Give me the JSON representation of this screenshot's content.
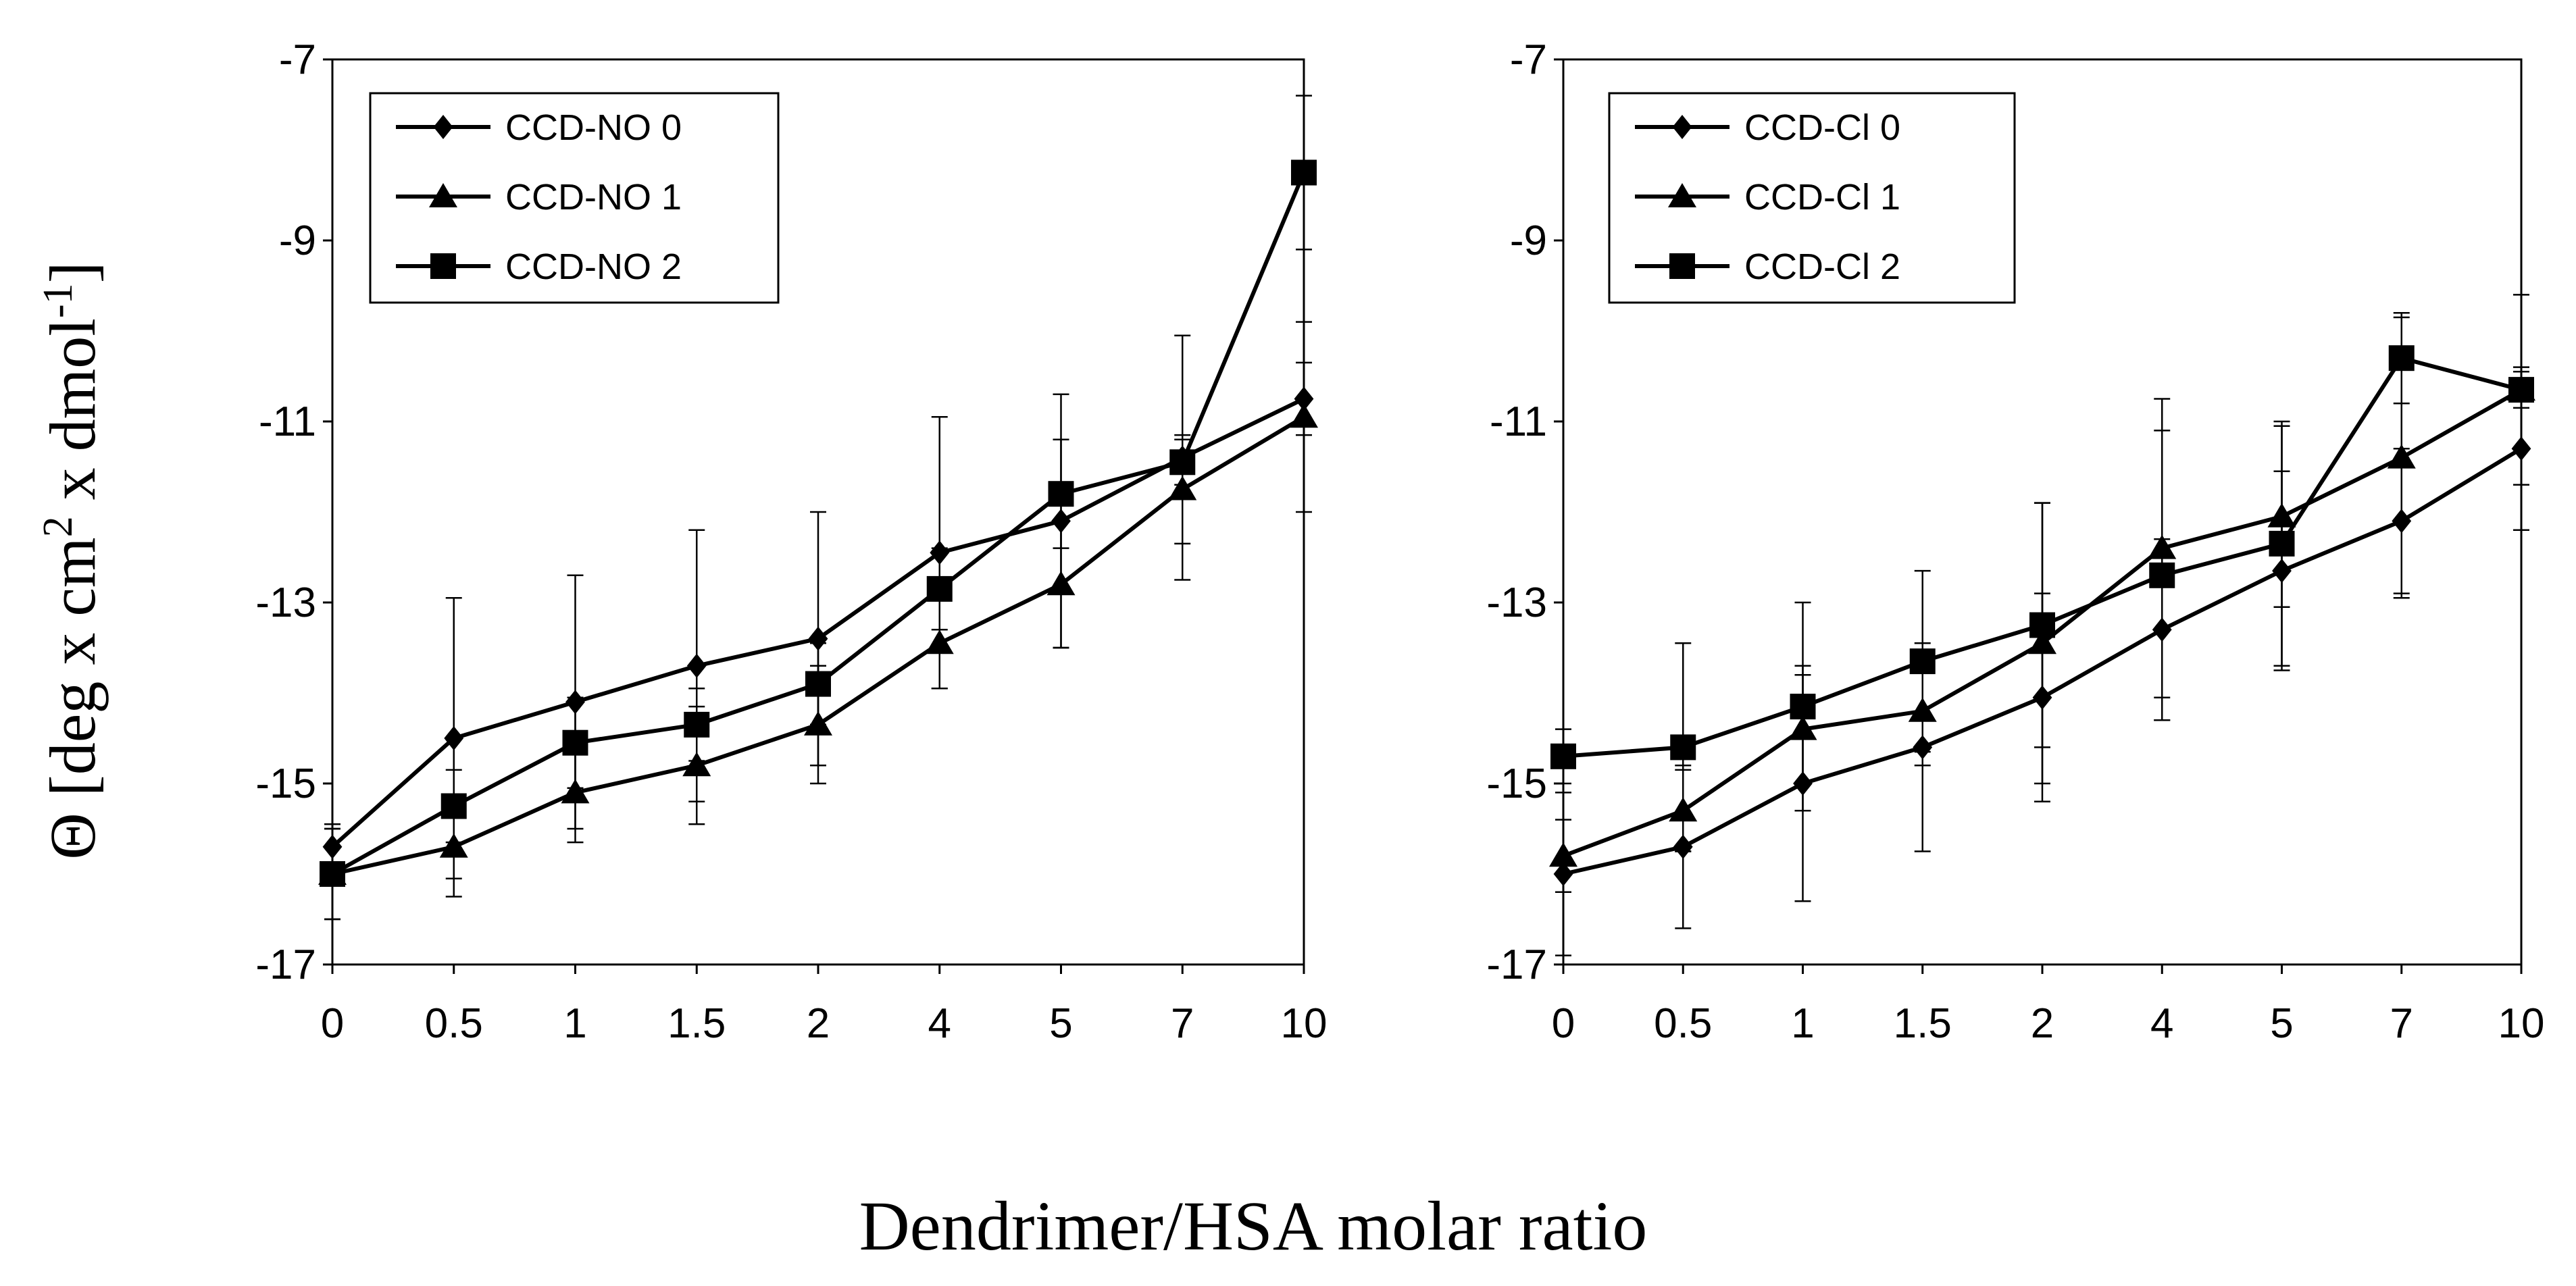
{
  "figure": {
    "ylabel_main": "Θ [deg x cm",
    "ylabel_sup1": "2",
    "ylabel_mid": " x dmol",
    "ylabel_sup2": "-1",
    "ylabel_end": "]",
    "xlabel": "Dendrimer/HSA molar ratio"
  },
  "chart_data": [
    {
      "type": "line",
      "categories": [
        "0",
        "0.5",
        "1",
        "1.5",
        "2",
        "4",
        "5",
        "7",
        "10"
      ],
      "ylim": [
        -17,
        -7
      ],
      "yticks": [
        -7,
        -9,
        -11,
        -13,
        -15,
        -17
      ],
      "legend_position": "top-left",
      "grid": false,
      "series": [
        {
          "name": "CCD-NO 0",
          "marker": "diamond",
          "values": [
            -15.7,
            -14.5,
            -14.1,
            -13.7,
            -13.4,
            -12.45,
            -12.1,
            -11.4,
            -10.75
          ],
          "errors": [
            0.25,
            1.55,
            1.4,
            1.5,
            1.4,
            1.5,
            1.4,
            1.35,
            0.4
          ]
        },
        {
          "name": "CCD-NO 1",
          "marker": "triangle",
          "values": [
            -16.0,
            -15.7,
            -15.1,
            -14.8,
            -14.35,
            -13.45,
            -12.8,
            -11.75,
            -10.95
          ],
          "errors": [
            0.5,
            0.55,
            0.55,
            0.65,
            0.65,
            0.5,
            0.7,
            0.6,
            1.05
          ]
        },
        {
          "name": "CCD-NO 2",
          "marker": "square",
          "values": [
            -16.0,
            -15.25,
            -14.55,
            -14.35,
            -13.9,
            -12.85,
            -11.8,
            -11.45,
            -8.25
          ],
          "errors": [
            0.5,
            0.4,
            0.5,
            0.4,
            0.45,
            0.45,
            0.6,
            0.25,
            0.85
          ]
        }
      ]
    },
    {
      "type": "line",
      "categories": [
        "0",
        "0.5",
        "1",
        "1.5",
        "2",
        "4",
        "5",
        "7",
        "10"
      ],
      "ylim": [
        -17,
        -7
      ],
      "yticks": [
        -7,
        -9,
        -11,
        -13,
        -15,
        -17
      ],
      "legend_position": "top-left",
      "grid": false,
      "series": [
        {
          "name": "CCD-Cl 0",
          "marker": "diamond",
          "values": [
            -16.0,
            -15.7,
            -15.0,
            -14.6,
            -14.05,
            -13.3,
            -12.65,
            -12.1,
            -11.3
          ],
          "errors": [
            0.9,
            0.9,
            1.3,
            1.15,
            1.15,
            1.0,
            1.1,
            0.8,
            0.9
          ]
        },
        {
          "name": "CCD-Cl 1",
          "marker": "triangle",
          "values": [
            -15.8,
            -15.3,
            -14.4,
            -14.2,
            -13.45,
            -12.4,
            -12.05,
            -11.4,
            -10.65
          ],
          "errors": [
            0.4,
            0.45,
            0.6,
            0.6,
            1.55,
            1.65,
            1.0,
            1.55,
            1.05
          ]
        },
        {
          "name": "CCD-Cl 2",
          "marker": "square",
          "values": [
            -14.7,
            -14.6,
            -14.15,
            -13.65,
            -13.25,
            -12.7,
            -12.35,
            -10.3,
            -10.65
          ],
          "errors": [
            0.3,
            1.15,
            1.15,
            1.0,
            1.35,
            1.6,
            1.35,
            0.5,
            0.2
          ]
        }
      ]
    }
  ]
}
